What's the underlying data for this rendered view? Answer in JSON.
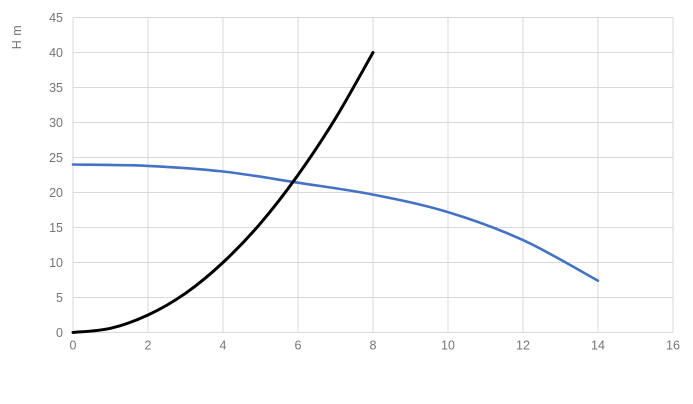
{
  "chart": {
    "background_color": "#ffffff",
    "grid_color": "#d9d9d9",
    "tick_label_color": "#757575",
    "axis_title_color": "#757575"
  },
  "chart_data": {
    "type": "line",
    "title": "",
    "xlabel": "",
    "ylabel": "H m",
    "xlim": [
      0,
      16
    ],
    "ylim": [
      0,
      45
    ],
    "xticks": [
      0,
      2,
      4,
      6,
      8,
      10,
      12,
      14,
      16
    ],
    "yticks": [
      0,
      5,
      10,
      15,
      20,
      25,
      30,
      35,
      40,
      45
    ],
    "grid": true,
    "legend_position": "none",
    "series": [
      {
        "name": "blue_curve",
        "color": "#4472c4",
        "stroke_width": 2.6,
        "points": [
          [
            0,
            24
          ],
          [
            2,
            23.8
          ],
          [
            4,
            23.0
          ],
          [
            6,
            21.4
          ],
          [
            8,
            19.7
          ],
          [
            10,
            17.2
          ],
          [
            12,
            13.2
          ],
          [
            14,
            7.4
          ]
        ]
      },
      {
        "name": "black_curve",
        "color": "#000000",
        "stroke_width": 3,
        "points": [
          [
            0,
            0
          ],
          [
            1,
            0.6
          ],
          [
            2,
            2.5
          ],
          [
            3,
            5.6
          ],
          [
            4,
            10
          ],
          [
            5,
            15.6
          ],
          [
            6,
            22.5
          ],
          [
            7,
            30.6
          ],
          [
            8,
            40
          ]
        ]
      }
    ]
  }
}
